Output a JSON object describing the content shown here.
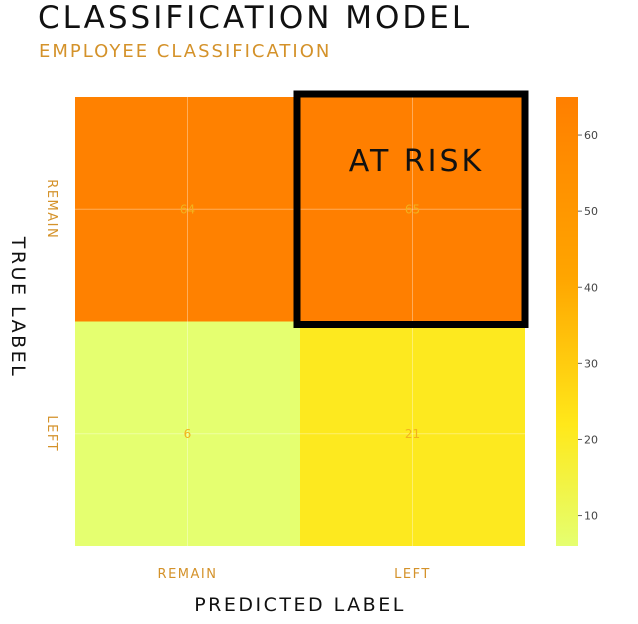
{
  "title": "CLASSIFICATION MODEL",
  "subtitle": "EMPLOYEE CLASSIFICATION",
  "chart_data": {
    "type": "heatmap",
    "title": "CLASSIFICATION MODEL",
    "subtitle": "EMPLOYEE CLASSIFICATION",
    "xlabel": "PREDICTED LABEL",
    "ylabel": "TRUE LABEL",
    "x_categories": [
      "REMAIN",
      "LEFT"
    ],
    "y_categories": [
      "REMAIN",
      "LEFT"
    ],
    "values": [
      [
        64,
        65
      ],
      [
        6,
        21
      ]
    ],
    "colorscale": {
      "min": 6,
      "max": 65,
      "ticks": [
        10,
        20,
        30,
        40,
        50,
        60
      ],
      "colors": [
        "#e5ff70",
        "#ffe81a",
        "#ffa500",
        "#ff7f00"
      ]
    },
    "annotation": {
      "text": "AT RISK",
      "cell": [
        0,
        1
      ]
    },
    "grid": true
  },
  "colors": {
    "title": "#111111",
    "accent": "#d4922a",
    "cell_label": "#f2b21e",
    "annotation_border": "#000000"
  }
}
